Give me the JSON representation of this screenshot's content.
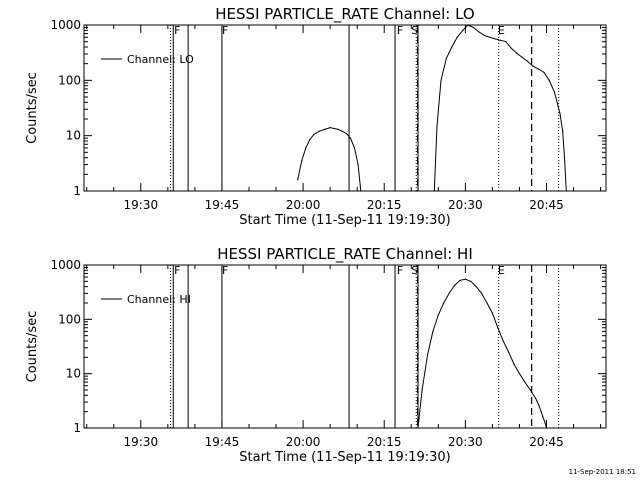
{
  "chart_data": [
    {
      "type": "line",
      "title": "HESSI PARTICLE_RATE Channel: LO",
      "xlabel": "Start Time (11-Sep-11 19:19:30)",
      "ylabel": "Counts/sec",
      "y_scale": "log",
      "xlim": [
        "19:19:30",
        "20:56:00"
      ],
      "ylim": [
        1,
        1000
      ],
      "x_ticks": [
        "19:30",
        "19:45",
        "20:00",
        "20:15",
        "20:30",
        "20:45"
      ],
      "y_ticks": [
        "1",
        "10",
        "100",
        "1000"
      ],
      "grid": false,
      "legend_position": "top-left",
      "series": [
        {
          "name": "Channel: LO",
          "x": [
            "19:59:00",
            "19:59:45",
            "20:00:30",
            "20:01:15",
            "20:02:00",
            "20:03:00",
            "20:04:00",
            "20:05:00",
            "20:05:45",
            "20:06:30",
            "20:07:15",
            "20:08:00",
            "20:08:45",
            "20:09:30",
            "20:10:10",
            "20:10:40",
            "20:24:15",
            "20:24:45",
            "20:25:30",
            "20:26:30",
            "20:27:30",
            "20:28:30",
            "20:29:30",
            "20:30:30",
            "20:31:30",
            "20:32:30",
            "20:33:30",
            "20:34:30",
            "20:35:30",
            "20:36:30",
            "20:37:30",
            "20:38:30",
            "20:39:30",
            "20:40:30",
            "20:41:30",
            "20:42:30",
            "20:43:30",
            "20:44:30",
            "20:45:30",
            "20:46:30",
            "20:47:30",
            "20:48:00",
            "20:48:20",
            "20:48:40"
          ],
          "y": [
            1.6,
            3.5,
            6,
            8.5,
            10.5,
            12,
            13,
            14,
            13.5,
            13,
            12,
            11,
            9,
            6,
            3,
            1,
            1,
            15,
            100,
            250,
            400,
            600,
            800,
            1000,
            900,
            750,
            650,
            600,
            560,
            530,
            500,
            380,
            310,
            260,
            220,
            180,
            160,
            140,
            100,
            60,
            25,
            12,
            4,
            1
          ]
        }
      ],
      "annotations": {
        "labels": [
          "F",
          "F",
          "F",
          "S",
          "E"
        ],
        "label_x": [
          "19:36:10",
          "19:45:00",
          "20:17:20",
          "20:20:00",
          "20:36:00"
        ],
        "solid_lines": [
          "19:36:00",
          "19:38:45",
          "19:45:00",
          "20:08:30",
          "20:17:00",
          "20:21:15"
        ],
        "dashed_lines": [
          "20:21:10",
          "20:42:15"
        ],
        "dotted_lines": [
          "19:35:30",
          "20:20:55",
          "20:36:10",
          "20:47:15"
        ]
      }
    },
    {
      "type": "line",
      "title": "HESSI PARTICLE_RATE Channel: HI",
      "xlabel": "Start Time (11-Sep-11 19:19:30)",
      "ylabel": "Counts/sec",
      "y_scale": "log",
      "xlim": [
        "19:19:30",
        "20:56:00"
      ],
      "ylim": [
        1,
        1000
      ],
      "x_ticks": [
        "19:30",
        "19:45",
        "20:00",
        "20:15",
        "20:30",
        "20:45"
      ],
      "y_ticks": [
        "1",
        "10",
        "100",
        "1000"
      ],
      "grid": false,
      "legend_position": "top-left",
      "series": [
        {
          "name": "Channel: HI",
          "x": [
            "20:21:15",
            "20:22:00",
            "20:23:00",
            "20:24:00",
            "20:25:00",
            "20:26:00",
            "20:27:00",
            "20:28:00",
            "20:29:00",
            "20:30:00",
            "20:31:00",
            "20:32:00",
            "20:33:00",
            "20:34:00",
            "20:35:00",
            "20:36:00",
            "20:37:00",
            "20:38:00",
            "20:39:00",
            "20:40:00",
            "20:41:00",
            "20:42:00",
            "20:43:00",
            "20:43:40",
            "20:44:00",
            "20:44:20",
            "20:44:40",
            "20:45:00"
          ],
          "y": [
            1,
            5,
            22,
            60,
            120,
            200,
            300,
            420,
            520,
            550,
            500,
            400,
            300,
            200,
            130,
            70,
            40,
            25,
            15,
            10,
            7,
            5,
            3.5,
            2.5,
            2,
            1.6,
            1.3,
            1
          ]
        }
      ],
      "annotations": {
        "labels": [
          "F",
          "F",
          "F",
          "S",
          "E"
        ],
        "label_x": [
          "19:36:10",
          "19:45:00",
          "20:17:20",
          "20:20:00",
          "20:36:00"
        ],
        "solid_lines": [
          "19:36:00",
          "19:38:45",
          "19:45:00",
          "20:08:30",
          "20:17:00",
          "20:21:15"
        ],
        "dashed_lines": [
          "20:21:10",
          "20:42:15"
        ],
        "dotted_lines": [
          "19:35:30",
          "20:20:55",
          "20:36:10",
          "20:47:15"
        ]
      }
    }
  ],
  "footer": {
    "timestamp": "11-Sep-2011 18:51"
  }
}
